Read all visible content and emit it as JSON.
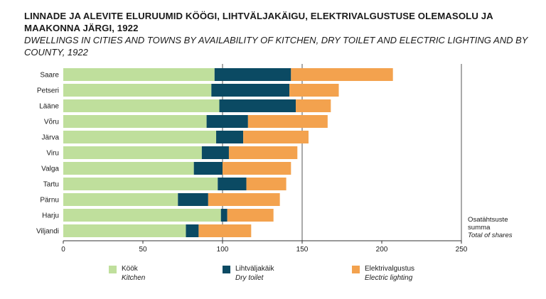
{
  "title": "LINNADE JA ALEVITE ELURUUMID KÖÖGI, LIHTVÄLJAKÄIGU, ELEKTRIVALGUSTUSE OLEMASOLU JA MAAKONNA JÄRGI, 1922",
  "subtitle": "DWELLINGS IN CITIES AND TOWNS BY AVAILABILITY OF KITCHEN, DRY TOILET AND ELECTRIC LIGHTING AND BY COUNTY, 1922",
  "axis_note": {
    "line1": "Osatähtsuste",
    "line2": "summa",
    "line3": "Total of shares"
  },
  "colors": {
    "kitchen": "#bfdf9c",
    "dry_toilet": "#0b4a63",
    "electric": "#f3a24e"
  },
  "chart_data": {
    "type": "bar",
    "orientation": "horizontal",
    "stacked": true,
    "categories": [
      "Saare",
      "Petseri",
      "Lääne",
      "Võru",
      "Järva",
      "Viru",
      "Valga",
      "Tartu",
      "Pärnu",
      "Harju",
      "Viljandi"
    ],
    "series": [
      {
        "name": "Köök",
        "name_en": "Kitchen",
        "color": "#bfdf9c",
        "values": [
          95,
          93,
          98,
          90,
          96,
          87,
          82,
          97,
          72,
          99,
          77
        ]
      },
      {
        "name": "Lihtväljakäik",
        "name_en": "Dry toilet",
        "color": "#0b4a63",
        "values": [
          48,
          49,
          48,
          26,
          17,
          17,
          18,
          18,
          19,
          4,
          8
        ]
      },
      {
        "name": "Elektrivalgustus",
        "name_en": "Electric lighting",
        "color": "#f3a24e",
        "values": [
          64,
          31,
          22,
          50,
          41,
          43,
          43,
          25,
          45,
          29,
          33
        ]
      }
    ],
    "xlim": [
      0,
      250
    ],
    "xticks": [
      0,
      50,
      100,
      150,
      200,
      250
    ],
    "grid": "vertical lines at 100, 150, 250",
    "legend_position": "bottom"
  }
}
